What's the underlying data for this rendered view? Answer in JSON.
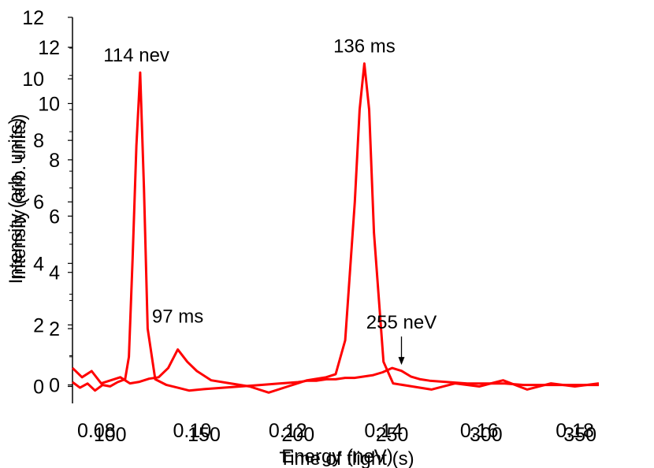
{
  "chart_data": [
    {
      "type": "line",
      "xlabel": "Energy (neV)",
      "ylabel": "Intensity (arb. units)",
      "xlim": [
        80,
        360
      ],
      "ylim": [
        -0.6,
        12
      ],
      "x_ticks": [
        100,
        150,
        200,
        250,
        300,
        350
      ],
      "y_ticks": [
        0,
        2,
        4,
        6,
        8,
        10,
        12
      ],
      "series": [
        {
          "color": "#ff0000",
          "x": [
            80,
            84,
            88,
            92,
            96,
            100,
            104,
            108,
            110,
            112,
            114,
            116,
            118,
            120,
            124,
            130,
            136,
            142,
            150,
            160,
            170,
            180,
            190,
            200,
            205,
            210,
            215,
            220,
            225,
            230,
            235,
            240,
            245,
            250,
            255,
            260,
            265,
            270,
            280,
            290,
            300,
            310,
            320,
            330,
            340,
            350,
            360
          ],
          "y": [
            0.1,
            -0.1,
            0.05,
            -0.2,
            0,
            -0.05,
            0.1,
            0.2,
            1.0,
            4.5,
            8.5,
            11.1,
            7.0,
            2.0,
            0.2,
            0.0,
            -0.1,
            -0.2,
            -0.15,
            -0.1,
            -0.05,
            0,
            0.05,
            0.1,
            0.15,
            0.15,
            0.2,
            0.2,
            0.25,
            0.25,
            0.3,
            0.35,
            0.45,
            0.6,
            0.5,
            0.3,
            0.2,
            0.15,
            0.1,
            0.05,
            0.05,
            0.05,
            0.0,
            0.0,
            0.0,
            0.0,
            0.0
          ]
        }
      ],
      "annotations": [
        {
          "text": "114 nev",
          "x": 114,
          "y": 11.1
        },
        {
          "text": "255 neV",
          "x": 255,
          "y": 0.6
        }
      ]
    },
    {
      "type": "line",
      "xlabel": "Time of flight (s)",
      "ylabel": "Intensity (arb. units)",
      "xlim": [
        0.075,
        0.185
      ],
      "ylim": [
        -0.5,
        12
      ],
      "x_ticks": [
        0.08,
        0.1,
        0.12,
        0.14,
        0.16,
        0.18
      ],
      "x_tick_labels": [
        "0.08",
        "0.10",
        "0.12",
        "0.14",
        "0.16",
        "0.18"
      ],
      "y_ticks": [
        0,
        2,
        4,
        6,
        8,
        10,
        12
      ],
      "series": [
        {
          "color": "#ff0000",
          "x": [
            0.075,
            0.077,
            0.079,
            0.081,
            0.083,
            0.085,
            0.087,
            0.089,
            0.091,
            0.093,
            0.095,
            0.097,
            0.099,
            0.101,
            0.104,
            0.108,
            0.112,
            0.116,
            0.12,
            0.124,
            0.128,
            0.13,
            0.132,
            0.134,
            0.135,
            0.136,
            0.137,
            0.138,
            0.14,
            0.142,
            0.146,
            0.15,
            0.155,
            0.16,
            0.165,
            0.17,
            0.175,
            0.18,
            0.185
          ],
          "y": [
            0.6,
            0.3,
            0.5,
            0.1,
            0.2,
            0.3,
            0.1,
            0.15,
            0.25,
            0.3,
            0.6,
            1.2,
            0.8,
            0.5,
            0.2,
            0.1,
            0.0,
            -0.2,
            0.0,
            0.2,
            0.3,
            0.4,
            1.5,
            6.0,
            9.0,
            10.5,
            9.0,
            5.0,
            0.8,
            0.1,
            0.0,
            -0.1,
            0.1,
            0.0,
            0.2,
            -0.1,
            0.1,
            0.0,
            0.1
          ]
        }
      ],
      "annotations": [
        {
          "text": "136 ms",
          "x": 0.136,
          "y": 10.5
        },
        {
          "text": "97 ms",
          "x": 0.097,
          "y": 1.2
        }
      ]
    }
  ]
}
